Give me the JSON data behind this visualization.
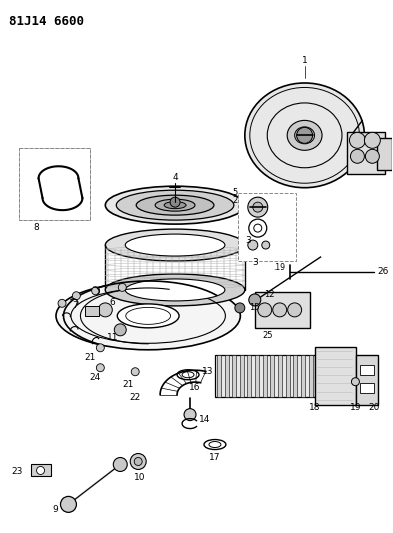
{
  "title": "81J14 6600",
  "bg_color": "#ffffff",
  "line_color": "#000000",
  "title_fontsize": 9,
  "figsize": [
    3.93,
    5.33
  ],
  "dpi": 100
}
